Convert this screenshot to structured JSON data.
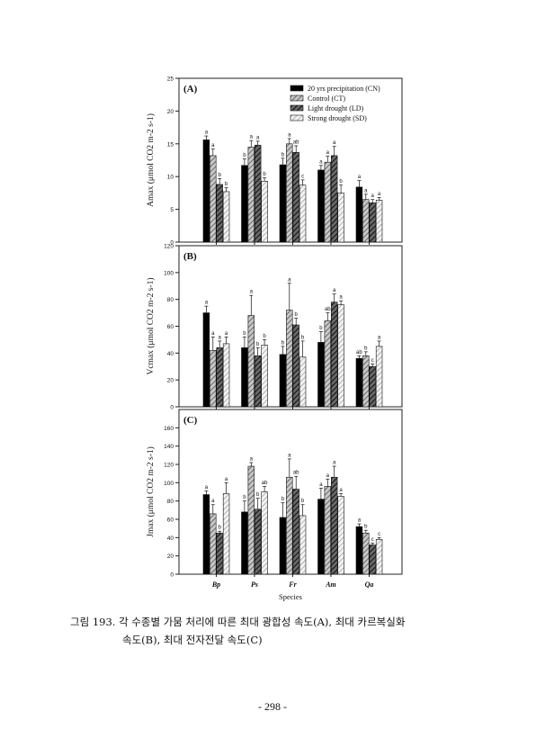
{
  "caption": {
    "line1": "그림 193. 각 수종별 가뭄 처리에 따른 최대 광합성 속도(A), 최대 카르복실화",
    "line2": "속도(B), 최대 전자전달 속도(C)"
  },
  "page_number": "- 298 -",
  "colors": {
    "CN": "#000000",
    "CT": "#9a9a9a",
    "LD": "#3c3c3c",
    "SD": "#d4d4d4"
  },
  "chart_data": [
    {
      "type": "bar",
      "panel_label": "(A)",
      "ylabel": "Amax (μmol CO2 m-2 s-1)",
      "ylim": [
        0,
        25
      ],
      "yticks": [
        0,
        5,
        10,
        15,
        20,
        25
      ],
      "categories": [
        "Bp",
        "Ps",
        "Fr",
        "Am",
        "Qa"
      ],
      "legend": [
        "20 yrs precipitation (CN)",
        "Control (CT)",
        "Light drought (LD)",
        "Strong drought (SD)"
      ],
      "legend_position": "top-right",
      "series": [
        {
          "name": "20 yrs precipitation (CN)",
          "values": [
            15.6,
            11.7,
            11.8,
            11.0,
            8.4
          ],
          "errors": [
            0.6,
            1.0,
            1.0,
            0.7,
            1.0
          ],
          "letters": [
            "a",
            "b",
            "b",
            "a",
            "a"
          ]
        },
        {
          "name": "Control (CT)",
          "values": [
            13.2,
            14.5,
            15.0,
            12.2,
            6.5
          ],
          "errors": [
            1.0,
            1.0,
            0.8,
            0.9,
            0.8
          ],
          "letters": [
            "a",
            "a",
            "a",
            "a",
            "a"
          ]
        },
        {
          "name": "Light drought (LD)",
          "values": [
            8.8,
            14.8,
            13.7,
            13.2,
            6.0
          ],
          "errors": [
            0.9,
            0.6,
            1.0,
            1.4,
            0.5
          ],
          "letters": [
            "b",
            "a",
            "ab",
            "a",
            "a"
          ]
        },
        {
          "name": "Strong drought (SD)",
          "values": [
            7.7,
            9.3,
            8.7,
            7.5,
            6.4
          ],
          "errors": [
            0.6,
            0.5,
            0.8,
            1.2,
            0.4
          ],
          "letters": [
            "b",
            "b",
            "c",
            "b",
            "a"
          ]
        }
      ]
    },
    {
      "type": "bar",
      "panel_label": "(B)",
      "ylabel": "Vcmax (μmol CO2 m-2 s-1)",
      "ylim": [
        0,
        120
      ],
      "yticks": [
        0,
        20,
        40,
        60,
        80,
        100,
        120
      ],
      "categories": [
        "Bp",
        "Ps",
        "Fr",
        "Am",
        "Qa"
      ],
      "series": [
        {
          "name": "20 yrs precipitation (CN)",
          "values": [
            70,
            44,
            39,
            48,
            36
          ],
          "errors": [
            5,
            8,
            6,
            8,
            2
          ],
          "letters": [
            "a",
            "b",
            "b",
            "b",
            "ab"
          ]
        },
        {
          "name": "Control (CT)",
          "values": [
            42,
            68,
            72,
            64,
            38
          ],
          "errors": [
            10,
            15,
            20,
            6,
            3
          ],
          "letters": [
            "a",
            "a",
            "a",
            "ab",
            "b"
          ]
        },
        {
          "name": "Light drought (LD)",
          "values": [
            44,
            38,
            61,
            78,
            30
          ],
          "errors": [
            5,
            6,
            5,
            6,
            2
          ],
          "letters": [
            "a",
            "b",
            "b",
            "a",
            "c"
          ]
        },
        {
          "name": "Strong drought (SD)",
          "values": [
            47,
            46,
            37,
            76,
            45
          ],
          "errors": [
            5,
            4,
            12,
            3,
            4
          ],
          "letters": [
            "a",
            "b",
            "b",
            "a",
            "a"
          ]
        }
      ]
    },
    {
      "type": "bar",
      "panel_label": "(C)",
      "ylabel": "Jmax (μmol CO2 m-2 s-1)",
      "xlabel": "Species",
      "ylim": [
        0,
        180
      ],
      "yticks": [
        0,
        20,
        40,
        60,
        80,
        100,
        120,
        140,
        160
      ],
      "categories": [
        "Bp",
        "Ps",
        "Fr",
        "Am",
        "Qa"
      ],
      "series": [
        {
          "name": "20 yrs precipitation (CN)",
          "values": [
            87,
            68,
            62,
            82,
            52
          ],
          "errors": [
            4,
            12,
            16,
            12,
            3
          ],
          "letters": [
            "a",
            "b",
            "b",
            "a",
            "a"
          ]
        },
        {
          "name": "Control (CT)",
          "values": [
            66,
            118,
            106,
            96,
            45
          ],
          "errors": [
            10,
            4,
            20,
            8,
            3
          ],
          "letters": [
            "a",
            "a",
            "a",
            "a",
            "b"
          ]
        },
        {
          "name": "Light drought (LD)",
          "values": [
            45,
            71,
            93,
            106,
            32
          ],
          "errors": [
            2,
            12,
            14,
            12,
            2
          ],
          "letters": [
            "b",
            "b",
            "ab",
            "a",
            "c"
          ]
        },
        {
          "name": "Strong drought (SD)",
          "values": [
            88,
            90,
            64,
            85,
            38
          ],
          "errors": [
            12,
            6,
            12,
            3,
            2
          ],
          "letters": [
            "a",
            "ab",
            "b",
            "a",
            "c"
          ]
        }
      ]
    }
  ]
}
